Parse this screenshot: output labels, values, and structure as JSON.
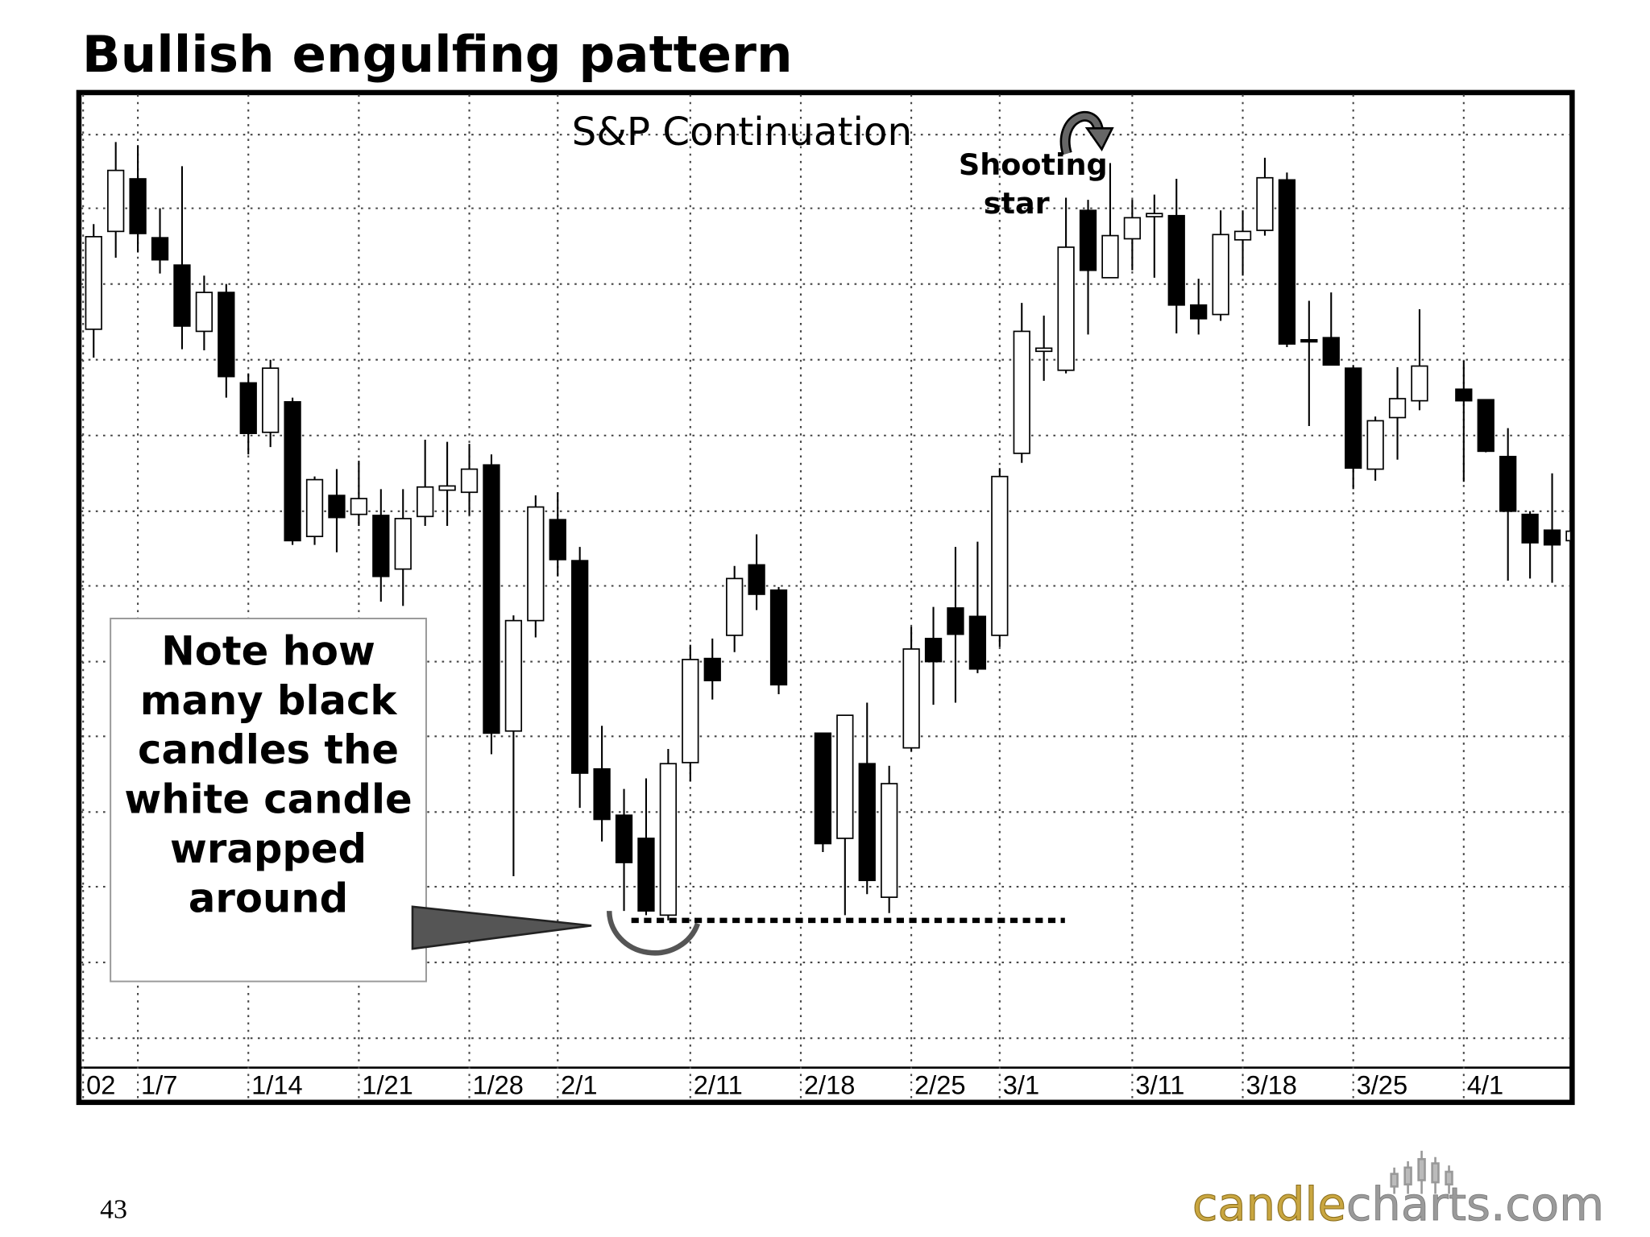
{
  "chart_data": {
    "type": "candlestick",
    "title": "Bullish engulfing pattern",
    "subtitle": "S&P Continuation",
    "annotations": [
      "Shooting star",
      "Note how many black candles the white candle wrapped around"
    ],
    "page_number": "43",
    "logo": [
      "candle",
      "charts.com"
    ],
    "categories": [
      "02",
      null,
      "1/7",
      null,
      null,
      null,
      null,
      "1/14",
      null,
      null,
      null,
      null,
      "1/21",
      null,
      null,
      null,
      null,
      "1/28",
      null,
      null,
      null,
      "2/1",
      null,
      null,
      null,
      null,
      null,
      "2/11",
      null,
      null,
      null,
      null,
      "2/18",
      null,
      null,
      null,
      null,
      "2/25",
      null,
      null,
      null,
      "3/1",
      null,
      null,
      null,
      null,
      null,
      "3/11",
      null,
      null,
      null,
      null,
      "3/18",
      null,
      null,
      null,
      null,
      "3/25",
      null,
      null,
      null,
      null,
      "4/1",
      null,
      null,
      null,
      null,
      null
    ],
    "open": [
      702,
      795,
      845,
      789,
      763,
      700,
      737,
      651,
      604,
      633,
      505,
      544,
      526,
      525,
      474,
      524,
      549,
      547,
      573,
      320,
      425,
      521,
      482,
      284,
      240,
      218,
      145,
      290,
      389,
      411,
      478,
      454,
      null,
      318,
      218,
      289,
      162,
      304,
      408,
      437,
      429,
      411,
      584,
      681,
      663,
      815,
      751,
      788,
      809,
      810,
      725,
      716,
      787,
      796,
      844,
      692,
      694,
      665,
      569,
      618,
      634,
      null,
      645,
      635,
      581,
      526,
      511,
      501
    ],
    "high": [
      802,
      880,
      877,
      817,
      857,
      753,
      745,
      660,
      673,
      637,
      562,
      569,
      577,
      550,
      550,
      597,
      595,
      593,
      583,
      430,
      544,
      547,
      495,
      325,
      265,
      275,
      303,
      402,
      408,
      477,
      507,
      457,
      null,
      318,
      335,
      347,
      287,
      419,
      438,
      495,
      500,
      570,
      727,
      715,
      827,
      825,
      860,
      825,
      830,
      845,
      750,
      815,
      815,
      865,
      851,
      729,
      737,
      668,
      619,
      666,
      721,
      null,
      672,
      635,
      608,
      529,
      565,
      510
    ],
    "low": [
      675,
      770,
      775,
      755,
      683,
      682,
      637,
      583,
      590,
      497,
      497,
      490,
      515,
      443,
      439,
      515,
      515,
      525,
      298,
      182,
      409,
      467,
      247,
      215,
      149,
      145,
      140,
      272,
      350,
      395,
      435,
      355,
      null,
      205,
      145,
      165,
      147,
      301,
      345,
      347,
      375,
      400,
      575,
      653,
      660,
      697,
      751,
      758,
      751,
      698,
      697,
      710,
      753,
      791,
      685,
      610,
      668,
      550,
      558,
      578,
      625,
      null,
      557,
      585,
      463,
      465,
      461,
      501
    ],
    "close": [
      790,
      853,
      793,
      768,
      705,
      737,
      657,
      603,
      665,
      501,
      559,
      523,
      541,
      467,
      522,
      552,
      553,
      569,
      318,
      425,
      533,
      483,
      280,
      236,
      195,
      149,
      289,
      388,
      368,
      465,
      450,
      364,
      null,
      213,
      335,
      178,
      270,
      398,
      386,
      412,
      379,
      562,
      700,
      684,
      780,
      758,
      791,
      808,
      812,
      725,
      712,
      792,
      795,
      846,
      688,
      690,
      668,
      570,
      615,
      636,
      667,
      null,
      634,
      586,
      529,
      499,
      497,
      510
    ],
    "up_color": "#ffffff",
    "down_color": "#000000",
    "ylim": [
      0,
      927
    ],
    "ygrid": [
      887,
      817,
      745,
      673,
      601,
      529,
      458,
      386,
      315,
      243,
      172,
      100,
      28
    ],
    "grid": true
  }
}
